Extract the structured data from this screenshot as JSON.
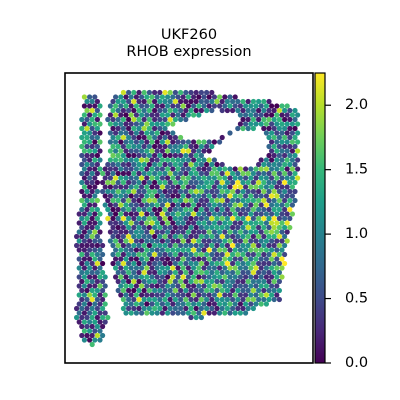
{
  "chart_data": {
    "type": "scatter",
    "subtype": "spatial-hexbin",
    "title_lines": [
      "UKF260",
      "RHOB expression"
    ],
    "xlabel": "",
    "ylabel": "",
    "colormap": "viridis",
    "colorbar": {
      "range": [
        0.0,
        2.25
      ],
      "ticks": [
        0.0,
        0.5,
        1.0,
        1.5,
        2.0
      ],
      "tick_labels": [
        "0.0",
        "0.5",
        "1.0",
        "1.5",
        "2.0"
      ]
    },
    "spots_note_values": "per-spot RHOB expression values",
    "value_distribution": {
      "min": 0.0,
      "max": 2.25,
      "typical_range": [
        0.2,
        1.6
      ]
    }
  },
  "colors": {
    "viridis": [
      "#440154",
      "#482878",
      "#3e4a89",
      "#31688e",
      "#26828e",
      "#1f9e89",
      "#35b779",
      "#6ece58",
      "#b5de2b",
      "#fde725"
    ]
  }
}
